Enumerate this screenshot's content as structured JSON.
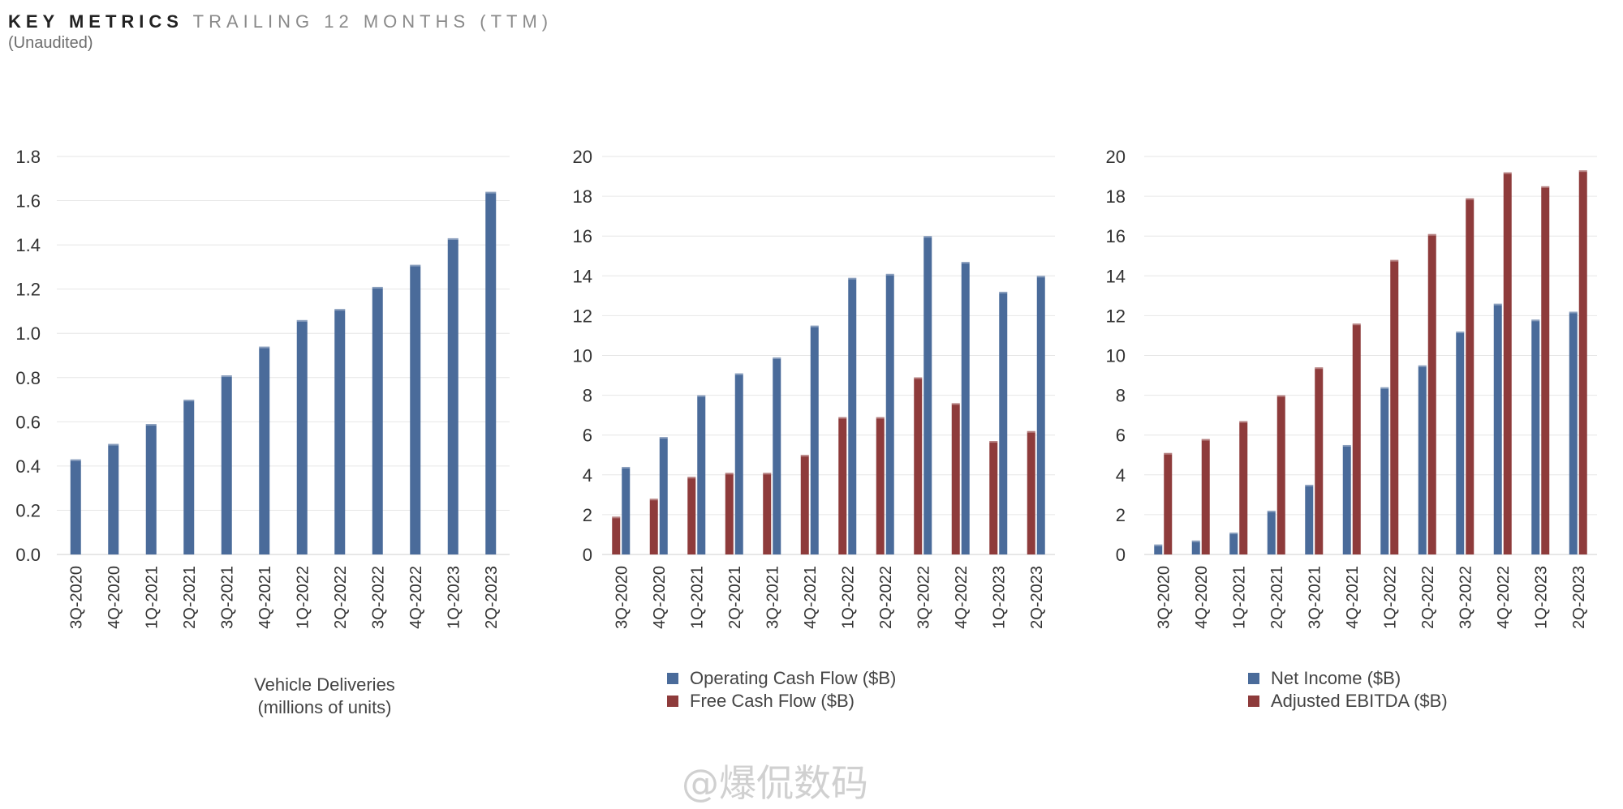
{
  "header": {
    "title_strong": "KEY METRICS",
    "title_light": "TRAILING 12 MONTHS (TTM)",
    "subtitle": "(Unaudited)"
  },
  "watermark": "@爆侃数码",
  "colors": {
    "blue": "#4a6b9a",
    "red": "#8e3b3b",
    "grid": "#e6e6e6"
  },
  "chart_data": [
    {
      "type": "bar",
      "categories": [
        "3Q-2020",
        "4Q-2020",
        "1Q-2021",
        "2Q-2021",
        "3Q-2021",
        "4Q-2021",
        "1Q-2022",
        "2Q-2022",
        "3Q-2022",
        "4Q-2022",
        "1Q-2023",
        "2Q-2023"
      ],
      "series": [
        {
          "name": "",
          "color": "#4a6b9a",
          "values": [
            0.43,
            0.5,
            0.59,
            0.7,
            0.81,
            0.94,
            1.06,
            1.11,
            1.21,
            1.31,
            1.43,
            1.64
          ]
        }
      ],
      "ylim": [
        0,
        1.8
      ],
      "yticks": [
        "0.0",
        "0.2",
        "0.4",
        "0.6",
        "0.8",
        "1.0",
        "1.2",
        "1.4",
        "1.6",
        "1.8"
      ],
      "grid": true,
      "legend": "none",
      "caption_lines": [
        "Vehicle Deliveries",
        "(millions of units)"
      ]
    },
    {
      "type": "bar",
      "categories": [
        "3Q-2020",
        "4Q-2020",
        "1Q-2021",
        "2Q-2021",
        "3Q-2021",
        "4Q-2021",
        "1Q-2022",
        "2Q-2022",
        "3Q-2022",
        "4Q-2022",
        "1Q-2023",
        "2Q-2023"
      ],
      "series": [
        {
          "name": "Free Cash Flow ($B)",
          "color": "#8e3b3b",
          "values": [
            1.9,
            2.8,
            3.9,
            4.1,
            4.1,
            5.0,
            6.9,
            6.9,
            8.9,
            7.6,
            5.7,
            6.2
          ]
        },
        {
          "name": "Operating Cash Flow ($B)",
          "color": "#4a6b9a",
          "values": [
            4.4,
            5.9,
            8.0,
            9.1,
            9.9,
            11.5,
            13.9,
            14.1,
            16.0,
            14.7,
            13.2,
            14.0
          ]
        }
      ],
      "ylim": [
        0,
        20
      ],
      "yticks": [
        "0",
        "2",
        "4",
        "6",
        "8",
        "10",
        "12",
        "14",
        "16",
        "18",
        "20"
      ],
      "grid": true,
      "legend": "bottom",
      "legend_order": [
        1,
        0
      ]
    },
    {
      "type": "bar",
      "categories": [
        "3Q-2020",
        "4Q-2020",
        "1Q-2021",
        "2Q-2021",
        "3Q-2021",
        "4Q-2021",
        "1Q-2022",
        "2Q-2022",
        "3Q-2022",
        "4Q-2022",
        "1Q-2023",
        "2Q-2023"
      ],
      "series": [
        {
          "name": "Net Income ($B)",
          "color": "#4a6b9a",
          "values": [
            0.5,
            0.7,
            1.1,
            2.2,
            3.5,
            5.5,
            8.4,
            9.5,
            11.2,
            12.6,
            11.8,
            12.2
          ]
        },
        {
          "name": "Adjusted EBITDA ($B)",
          "color": "#8e3b3b",
          "values": [
            5.1,
            5.8,
            6.7,
            8.0,
            9.4,
            11.6,
            14.8,
            16.1,
            17.9,
            19.2,
            18.5,
            19.3
          ]
        }
      ],
      "ylim": [
        0,
        20
      ],
      "yticks": [
        "0",
        "2",
        "4",
        "6",
        "8",
        "10",
        "12",
        "14",
        "16",
        "18",
        "20"
      ],
      "grid": true,
      "legend": "bottom",
      "legend_order": [
        0,
        1
      ]
    }
  ]
}
